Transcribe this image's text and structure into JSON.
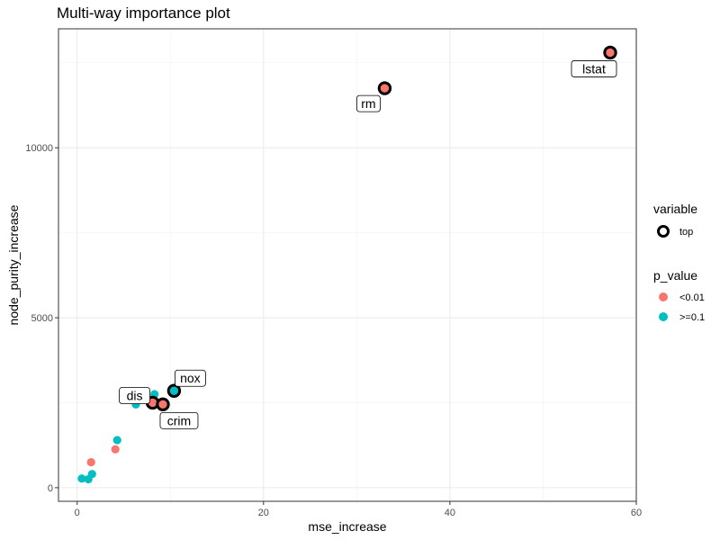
{
  "chart_data": {
    "type": "scatter",
    "title": "Multi-way importance plot",
    "xlabel": "mse_increase",
    "ylabel": "node_purity_increase",
    "xlim": [
      -2,
      60
    ],
    "ylim": [
      -400,
      13500
    ],
    "x_ticks": [
      {
        "value": 0,
        "label": "0"
      },
      {
        "value": 20,
        "label": "20"
      },
      {
        "value": 40,
        "label": "40"
      },
      {
        "value": 60,
        "label": "60"
      }
    ],
    "y_ticks": [
      {
        "value": 0,
        "label": "0"
      },
      {
        "value": 5000,
        "label": "5000"
      },
      {
        "value": 10000,
        "label": "10000"
      }
    ],
    "x_minor": [
      10,
      30,
      50
    ],
    "y_minor": [
      2500,
      7500,
      12500
    ],
    "grid": true,
    "legend": {
      "placement": "right",
      "variable": {
        "title": "variable",
        "entries": [
          {
            "label": "top"
          }
        ]
      },
      "p_value": {
        "title": "p_value",
        "entries": [
          {
            "label": "<0.01",
            "color": "#F8766D"
          },
          {
            "label": ">=0.1",
            "color": "#00BFC4"
          }
        ]
      }
    },
    "points": [
      {
        "x": 57.2,
        "y": 12800,
        "p_value": "<0.01",
        "top": true,
        "label": "lstat"
      },
      {
        "x": 33.0,
        "y": 11750,
        "p_value": "<0.01",
        "top": true,
        "label": "rm"
      },
      {
        "x": 10.4,
        "y": 2850,
        "p_value": ">=0.1",
        "top": true,
        "label": "nox"
      },
      {
        "x": 8.1,
        "y": 2500,
        "p_value": "<0.01",
        "top": true,
        "label": "dis"
      },
      {
        "x": 9.2,
        "y": 2450,
        "p_value": "<0.01",
        "top": true,
        "label": "crim"
      },
      {
        "x": 8.3,
        "y": 2750,
        "p_value": ">=0.1",
        "top": false
      },
      {
        "x": 6.3,
        "y": 2450,
        "p_value": ">=0.1",
        "top": false
      },
      {
        "x": 4.3,
        "y": 1400,
        "p_value": ">=0.1",
        "top": false
      },
      {
        "x": 4.1,
        "y": 1130,
        "p_value": "<0.01",
        "top": false
      },
      {
        "x": 1.5,
        "y": 750,
        "p_value": "<0.01",
        "top": false
      },
      {
        "x": 1.6,
        "y": 400,
        "p_value": ">=0.1",
        "top": false
      },
      {
        "x": 0.5,
        "y": 270,
        "p_value": ">=0.1",
        "top": false
      },
      {
        "x": 1.2,
        "y": 250,
        "p_value": ">=0.1",
        "top": false
      }
    ]
  }
}
